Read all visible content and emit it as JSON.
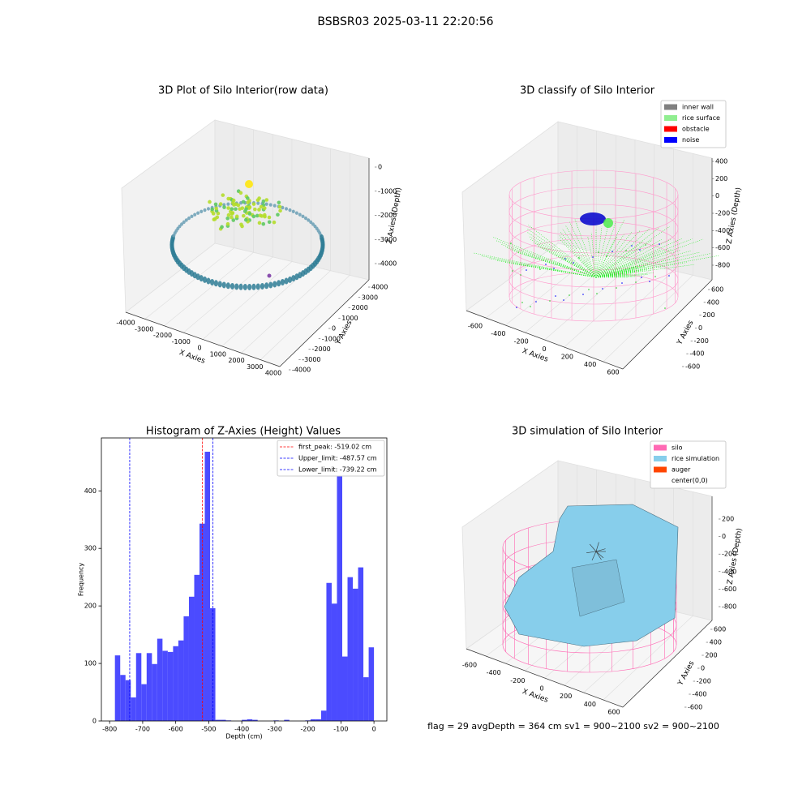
{
  "title": "BSBSR03 2025-03-11 22:20:56",
  "chart_data": [
    {
      "type": "scatter3d",
      "title": "3D Plot of Silo Interior(row data)",
      "x_label": "X Axies",
      "y_label": "Y Axies",
      "z_label": "Z Axies (Depth)",
      "xticks": [
        -4000,
        -3000,
        -2000,
        -1000,
        0,
        1000,
        2000,
        3000,
        4000
      ],
      "yticks": [
        4000,
        3000,
        2000,
        1000,
        0,
        -1000,
        -2000,
        -3000,
        -4000
      ],
      "zticks": [
        0,
        -1000,
        -2000,
        -3000,
        -4000
      ]
    },
    {
      "type": "scatter3d",
      "title": "3D classify of Silo Interior",
      "x_label": "X Axies",
      "y_label": "Y Axies",
      "z_label": "Z Axies (Depth)",
      "xticks": [
        -600,
        -400,
        -200,
        0,
        200,
        400,
        600
      ],
      "yticks": [
        600,
        400,
        200,
        0,
        -200,
        -400,
        -600
      ],
      "zticks": [
        400,
        200,
        0,
        -200,
        -400,
        -600,
        -800
      ],
      "legend": [
        {
          "name": "inner wall",
          "color": "#808080"
        },
        {
          "name": "rice surface",
          "color": "#90ee90"
        },
        {
          "name": "obstacle",
          "color": "#ff0000"
        },
        {
          "name": "noise",
          "color": "#0000ff"
        }
      ]
    },
    {
      "type": "histogram",
      "title": "Histogram of Z-Axies (Height) Values",
      "x_label": "Depth (cm)",
      "y_label": "Frequency",
      "color": "#4b4bff",
      "bins": [
        -784,
        -768,
        -752,
        -736,
        -720,
        -704,
        -688,
        -672,
        -656,
        -640,
        -624,
        -608,
        -592,
        -576,
        -560,
        -544,
        -528,
        -512,
        -496,
        -480,
        -464,
        -448,
        -432,
        -416,
        -400,
        -384,
        -368,
        -352,
        -336,
        -320,
        -304,
        -288,
        -272,
        -256,
        -240,
        -224,
        -208,
        -192,
        -176,
        -160,
        -144,
        -128,
        -112,
        -96,
        -80,
        -64,
        -48,
        -32,
        -16,
        0
      ],
      "values": [
        114,
        80,
        71,
        41,
        118,
        64,
        118,
        99,
        143,
        122,
        120,
        130,
        140,
        182,
        216,
        254,
        343,
        468,
        196,
        2,
        2,
        1,
        0,
        0,
        2,
        3,
        2,
        0,
        0,
        0,
        1,
        0,
        2,
        0,
        0,
        0,
        1,
        3,
        3,
        18,
        240,
        204,
        460,
        112,
        250,
        230,
        267,
        76,
        128
      ],
      "xlim": [
        -825,
        39
      ],
      "ylim": [
        0,
        492
      ],
      "xticks": [
        -800,
        -700,
        -600,
        -500,
        -400,
        -300,
        -200,
        -100,
        0
      ],
      "yticks": [
        0,
        100,
        200,
        300,
        400
      ],
      "vlines": [
        {
          "name": "first_peak: -519.02 cm",
          "value": -519.02,
          "color": "#ff0000"
        },
        {
          "name": "Upper_limit: -487.57 cm",
          "value": -487.57,
          "color": "#0000ff"
        },
        {
          "name": "Lower_limit: -739.22 cm",
          "value": -739.22,
          "color": "#0000ff"
        }
      ],
      "legend_position": "upper right"
    },
    {
      "type": "surface3d",
      "title": "3D simulation of Silo Interior",
      "x_label": "X Axies",
      "y_label": "Y Axies",
      "z_label": "Z Axies (Depth)",
      "xticks": [
        -600,
        -400,
        -200,
        0,
        200,
        400,
        600
      ],
      "yticks": [
        600,
        400,
        200,
        0,
        -200,
        -400,
        -600
      ],
      "zticks": [
        200,
        0,
        -200,
        -400,
        -600,
        -800
      ],
      "legend": [
        {
          "name": "silo",
          "color": "#ff69b4"
        },
        {
          "name": "rice simulation",
          "color": "#87ceeb"
        },
        {
          "name": "auger",
          "color": "#ff4500"
        },
        {
          "name": "center(0,0)"
        }
      ],
      "annotation": "flag = 29  avgDepth = 364 cm  sv1 = 900~2100  sv2 = 900~2100"
    }
  ]
}
